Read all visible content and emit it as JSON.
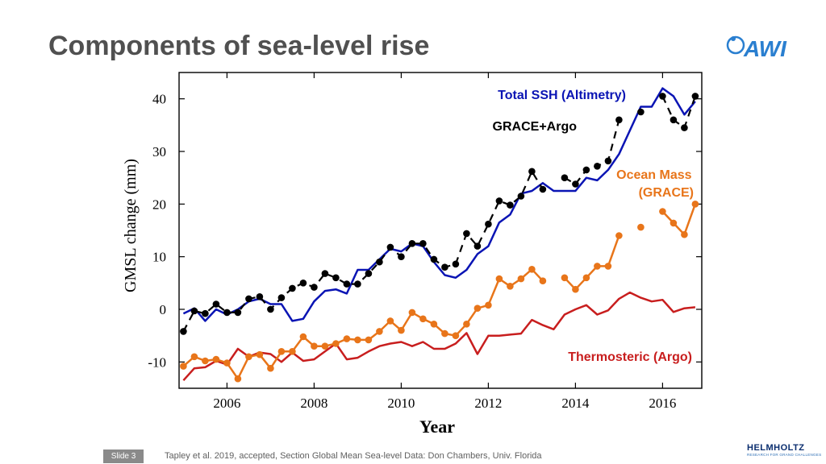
{
  "slide": {
    "title": "Components of sea-level rise",
    "slide_label": "Slide 3",
    "citation": "Tapley et al. 2019, accepted, Section Global Mean Sea-level Data: Don Chambers, Univ. Florida",
    "logo_text": "AWI",
    "sponsor_name": "HELMHOLTZ",
    "sponsor_tagline": "RESEARCH FOR GRAND CHALLENGES"
  },
  "colors": {
    "altimetry": "#0a14b4",
    "grace_argo": "#000000",
    "ocean_mass": "#e8751a",
    "thermosteric": "#c81e1e",
    "axis": "#000000"
  },
  "chart_data": {
    "type": "line",
    "xlabel": "Year",
    "ylabel": "GMSL change (mm)",
    "xlim": [
      2004.9,
      2016.9
    ],
    "ylim": [
      -15,
      45
    ],
    "xticks": [
      2006,
      2008,
      2010,
      2012,
      2014,
      2016
    ],
    "yticks": [
      -10,
      0,
      10,
      20,
      30,
      40
    ],
    "grid": false,
    "series": [
      {
        "name": "Total SSH (Altimetry)",
        "style": "solid-line",
        "points": [
          [
            2005.0,
            -0.8
          ],
          [
            2005.25,
            0.2
          ],
          [
            2005.5,
            -2.2
          ],
          [
            2005.75,
            0.0
          ],
          [
            2006.0,
            -1.0
          ],
          [
            2006.25,
            0.0
          ],
          [
            2006.5,
            1.5
          ],
          [
            2006.75,
            2.0
          ],
          [
            2007.0,
            1.0
          ],
          [
            2007.25,
            1.0
          ],
          [
            2007.5,
            -2.2
          ],
          [
            2007.75,
            -1.8
          ],
          [
            2008.0,
            1.5
          ],
          [
            2008.25,
            3.5
          ],
          [
            2008.5,
            3.8
          ],
          [
            2008.75,
            3.0
          ],
          [
            2009.0,
            7.5
          ],
          [
            2009.25,
            7.5
          ],
          [
            2009.5,
            9.5
          ],
          [
            2009.75,
            11.5
          ],
          [
            2010.0,
            11.0
          ],
          [
            2010.25,
            12.5
          ],
          [
            2010.5,
            12.0
          ],
          [
            2010.75,
            9.0
          ],
          [
            2011.0,
            6.5
          ],
          [
            2011.25,
            6.0
          ],
          [
            2011.5,
            7.5
          ],
          [
            2011.75,
            10.5
          ],
          [
            2012.0,
            12.0
          ],
          [
            2012.25,
            16.5
          ],
          [
            2012.5,
            18.0
          ],
          [
            2012.75,
            22.0
          ],
          [
            2013.0,
            22.5
          ],
          [
            2013.25,
            24.0
          ],
          [
            2013.5,
            22.5
          ],
          [
            2013.75,
            22.5
          ],
          [
            2014.0,
            22.5
          ],
          [
            2014.25,
            25.0
          ],
          [
            2014.5,
            24.5
          ],
          [
            2014.75,
            26.5
          ],
          [
            2015.0,
            29.5
          ],
          [
            2015.25,
            34.0
          ],
          [
            2015.5,
            38.5
          ],
          [
            2015.75,
            38.5
          ],
          [
            2016.0,
            42.0
          ],
          [
            2016.25,
            40.5
          ],
          [
            2016.5,
            37.0
          ],
          [
            2016.75,
            39.5
          ]
        ]
      },
      {
        "name": "GRACE+Argo",
        "style": "dashed-line-with-dots",
        "points": [
          [
            2005.0,
            -4.2
          ],
          [
            2005.25,
            -0.3
          ],
          [
            2005.5,
            -0.8
          ],
          [
            2005.75,
            1.0
          ],
          [
            2006.0,
            -0.6
          ],
          [
            2006.25,
            -0.6
          ],
          [
            2006.5,
            2.0
          ],
          [
            2006.75,
            2.4
          ],
          [
            2007.0,
            0.0
          ],
          [
            2007.25,
            2.2
          ],
          [
            2007.5,
            4.0
          ],
          [
            2007.75,
            5.0
          ],
          [
            2008.0,
            4.2
          ],
          [
            2008.25,
            6.8
          ],
          [
            2008.5,
            6.0
          ],
          [
            2008.75,
            4.8
          ],
          [
            2009.0,
            4.8
          ],
          [
            2009.25,
            6.8
          ],
          [
            2009.5,
            9.0
          ],
          [
            2009.75,
            11.8
          ],
          [
            2010.0,
            10.0
          ],
          [
            2010.25,
            12.5
          ],
          [
            2010.5,
            12.5
          ],
          [
            2010.75,
            9.5
          ],
          [
            2011.0,
            8.0
          ],
          [
            2011.25,
            8.6
          ],
          [
            2011.5,
            14.4
          ],
          [
            2011.75,
            12.0
          ],
          [
            2012.0,
            16.2
          ],
          [
            2012.25,
            20.6
          ],
          [
            2012.5,
            19.8
          ],
          [
            2012.75,
            21.5
          ],
          [
            2013.0,
            26.2
          ],
          [
            2013.25,
            22.8
          ],
          [
            null,
            null
          ],
          [
            2013.75,
            25.0
          ],
          [
            2014.0,
            23.8
          ],
          [
            2014.25,
            26.5
          ],
          [
            2014.5,
            27.2
          ],
          [
            2014.75,
            28.2
          ],
          [
            2015.0,
            36.0
          ],
          [
            null,
            null
          ],
          [
            2015.5,
            37.5
          ],
          [
            null,
            null
          ],
          [
            2016.0,
            40.5
          ],
          [
            2016.25,
            36.0
          ],
          [
            2016.5,
            34.5
          ],
          [
            2016.75,
            40.5
          ]
        ]
      },
      {
        "name": "Ocean Mass (GRACE)",
        "style": "line-with-dots",
        "points": [
          [
            2005.0,
            -10.8
          ],
          [
            2005.25,
            -9.0
          ],
          [
            2005.5,
            -9.8
          ],
          [
            2005.75,
            -9.5
          ],
          [
            2006.0,
            -10.2
          ],
          [
            2006.25,
            -13.2
          ],
          [
            2006.5,
            -9.0
          ],
          [
            2006.75,
            -8.6
          ],
          [
            2007.0,
            -11.2
          ],
          [
            2007.25,
            -8.0
          ],
          [
            2007.5,
            -8.0
          ],
          [
            2007.75,
            -5.2
          ],
          [
            2008.0,
            -7.0
          ],
          [
            2008.25,
            -7.0
          ],
          [
            2008.5,
            -6.5
          ],
          [
            2008.75,
            -5.6
          ],
          [
            2009.0,
            -5.8
          ],
          [
            2009.25,
            -5.8
          ],
          [
            2009.5,
            -4.2
          ],
          [
            2009.75,
            -2.2
          ],
          [
            2010.0,
            -4.0
          ],
          [
            2010.25,
            -0.6
          ],
          [
            2010.5,
            -1.8
          ],
          [
            2010.75,
            -2.8
          ],
          [
            2011.0,
            -4.6
          ],
          [
            2011.25,
            -5.0
          ],
          [
            2011.5,
            -2.8
          ],
          [
            2011.75,
            0.2
          ],
          [
            2012.0,
            0.8
          ],
          [
            2012.25,
            5.8
          ],
          [
            2012.5,
            4.4
          ],
          [
            2012.75,
            5.8
          ],
          [
            2013.0,
            7.6
          ],
          [
            2013.25,
            5.4
          ],
          [
            null,
            null
          ],
          [
            2013.75,
            6.0
          ],
          [
            2014.0,
            3.8
          ],
          [
            2014.25,
            6.0
          ],
          [
            2014.5,
            8.2
          ],
          [
            2014.75,
            8.2
          ],
          [
            2015.0,
            14.0
          ],
          [
            null,
            null
          ],
          [
            2015.5,
            15.6
          ],
          [
            null,
            null
          ],
          [
            2016.0,
            18.6
          ],
          [
            2016.25,
            16.4
          ],
          [
            2016.5,
            14.2
          ],
          [
            2016.75,
            20.0
          ]
        ]
      },
      {
        "name": "Thermosteric (Argo)",
        "style": "solid-line",
        "points": [
          [
            2005.0,
            -13.5
          ],
          [
            2005.25,
            -11.2
          ],
          [
            2005.5,
            -11.0
          ],
          [
            2005.75,
            -9.8
          ],
          [
            2006.0,
            -10.5
          ],
          [
            2006.25,
            -7.5
          ],
          [
            2006.5,
            -9.0
          ],
          [
            2006.75,
            -8.2
          ],
          [
            2007.0,
            -8.5
          ],
          [
            2007.25,
            -10.0
          ],
          [
            2007.5,
            -8.2
          ],
          [
            2007.75,
            -9.8
          ],
          [
            2008.0,
            -9.5
          ],
          [
            2008.25,
            -8.0
          ],
          [
            2008.5,
            -6.5
          ],
          [
            2008.75,
            -9.5
          ],
          [
            2009.0,
            -9.2
          ],
          [
            2009.25,
            -8.0
          ],
          [
            2009.5,
            -7.0
          ],
          [
            2009.75,
            -6.5
          ],
          [
            2010.0,
            -6.2
          ],
          [
            2010.25,
            -7.0
          ],
          [
            2010.5,
            -6.2
          ],
          [
            2010.75,
            -7.5
          ],
          [
            2011.0,
            -7.5
          ],
          [
            2011.25,
            -6.5
          ],
          [
            2011.5,
            -4.5
          ],
          [
            2011.75,
            -8.5
          ],
          [
            2012.0,
            -5.0
          ],
          [
            2012.25,
            -5.0
          ],
          [
            2012.5,
            -4.8
          ],
          [
            2012.75,
            -4.6
          ],
          [
            2013.0,
            -2.0
          ],
          [
            2013.25,
            -3.0
          ],
          [
            2013.5,
            -3.8
          ],
          [
            2013.75,
            -1.0
          ],
          [
            2014.0,
            0.0
          ],
          [
            2014.25,
            0.8
          ],
          [
            2014.5,
            -1.0
          ],
          [
            2014.75,
            -0.2
          ],
          [
            2015.0,
            2.0
          ],
          [
            2015.25,
            3.2
          ],
          [
            2015.5,
            2.2
          ],
          [
            2015.75,
            1.5
          ],
          [
            2016.0,
            1.8
          ],
          [
            2016.25,
            -0.5
          ],
          [
            2016.5,
            0.2
          ],
          [
            2016.75,
            0.4
          ]
        ]
      }
    ]
  }
}
